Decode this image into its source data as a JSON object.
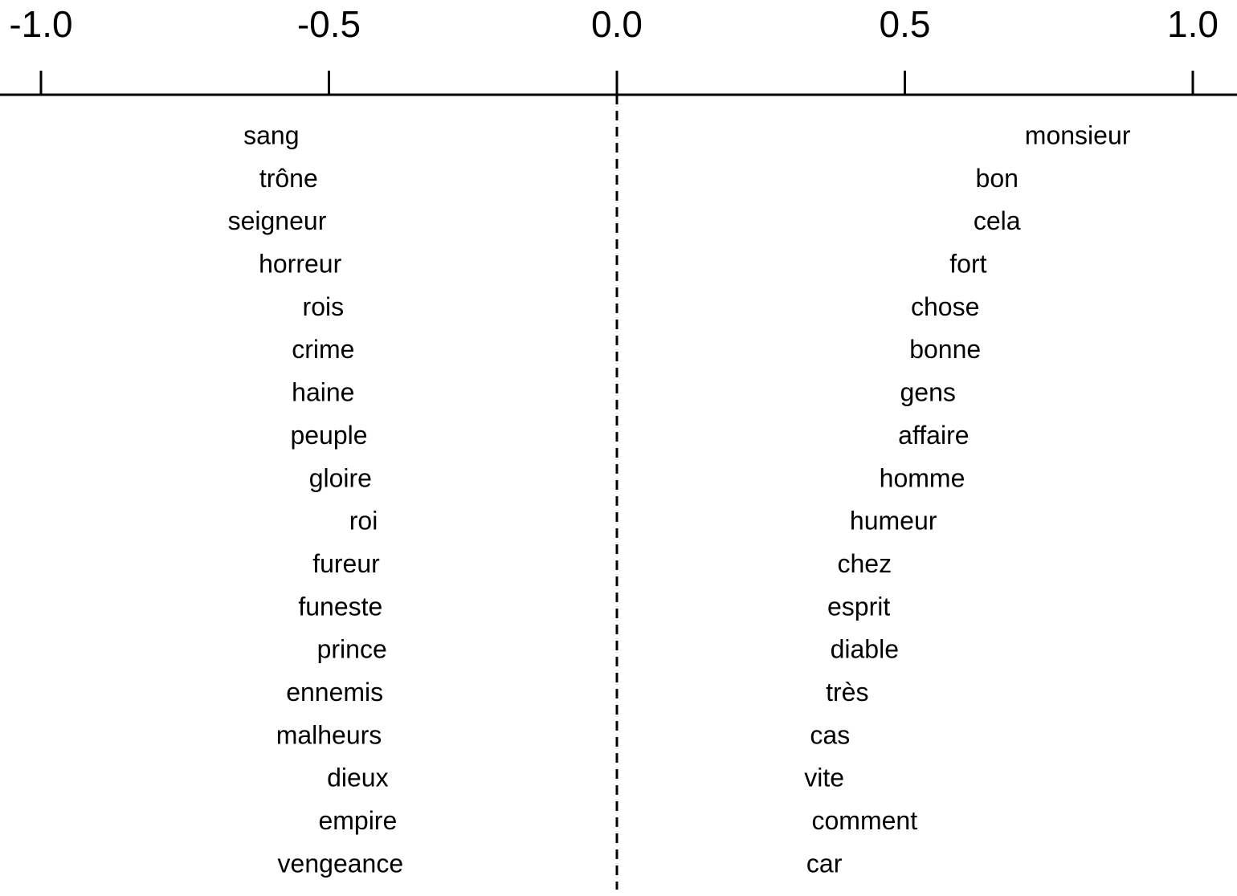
{
  "chart_data": {
    "type": "scatter",
    "xlim": [
      -1.0,
      1.0
    ],
    "x_ticks": [
      -1.0,
      -0.5,
      0.0,
      0.5,
      1.0
    ],
    "x_tick_labels": [
      "-1.0",
      "-0.5",
      "0.0",
      "0.5",
      "1.0"
    ],
    "axis_position": "top",
    "reference_line": {
      "x": 0.0,
      "style": "dashed"
    },
    "grid": false,
    "series": [
      {
        "points": [
          {
            "label": "sang",
            "x": -0.6
          },
          {
            "label": "trône",
            "x": -0.57
          },
          {
            "label": "seigneur",
            "x": -0.59
          },
          {
            "label": "horreur",
            "x": -0.55
          },
          {
            "label": "rois",
            "x": -0.51
          },
          {
            "label": "crime",
            "x": -0.51
          },
          {
            "label": "haine",
            "x": -0.51
          },
          {
            "label": "peuple",
            "x": -0.5
          },
          {
            "label": "gloire",
            "x": -0.48
          },
          {
            "label": "roi",
            "x": -0.44
          },
          {
            "label": "fureur",
            "x": -0.47
          },
          {
            "label": "funeste",
            "x": -0.48
          },
          {
            "label": "prince",
            "x": -0.46
          },
          {
            "label": "ennemis",
            "x": -0.49
          },
          {
            "label": "malheurs",
            "x": -0.5
          },
          {
            "label": "dieux",
            "x": -0.45
          },
          {
            "label": "empire",
            "x": -0.45
          },
          {
            "label": "vengeance",
            "x": -0.48
          }
        ]
      },
      {
        "points": [
          {
            "label": "monsieur",
            "x": 0.8
          },
          {
            "label": "bon",
            "x": 0.66
          },
          {
            "label": "cela",
            "x": 0.66
          },
          {
            "label": "fort",
            "x": 0.61
          },
          {
            "label": "chose",
            "x": 0.57
          },
          {
            "label": "bonne",
            "x": 0.57
          },
          {
            "label": "gens",
            "x": 0.54
          },
          {
            "label": "affaire",
            "x": 0.55
          },
          {
            "label": "homme",
            "x": 0.53
          },
          {
            "label": "humeur",
            "x": 0.48
          },
          {
            "label": "chez",
            "x": 0.43
          },
          {
            "label": "esprit",
            "x": 0.42
          },
          {
            "label": "diable",
            "x": 0.43
          },
          {
            "label": "très",
            "x": 0.4
          },
          {
            "label": "cas",
            "x": 0.37
          },
          {
            "label": "vite",
            "x": 0.36
          },
          {
            "label": "comment",
            "x": 0.43
          },
          {
            "label": "car",
            "x": 0.36
          }
        ]
      }
    ]
  }
}
